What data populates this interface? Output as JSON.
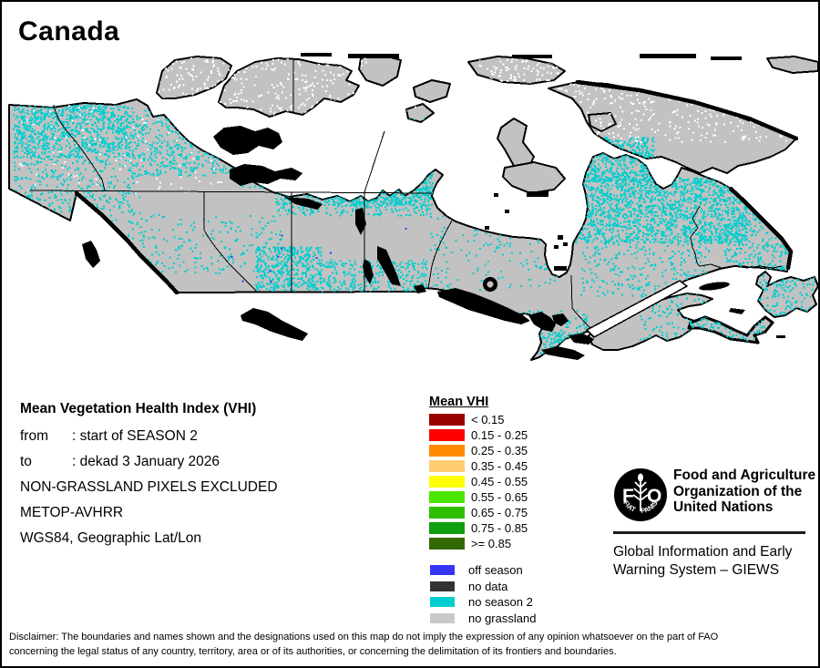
{
  "window": {
    "title": "Canada"
  },
  "map": {
    "description": "Raster map of Canada showing mean VHI classes",
    "land_color": "#C2C2C2",
    "ocean_color": "#FFFFFF",
    "outline_color": "#000000",
    "speckle_colors": {
      "no_season_2": "#00CDCD",
      "off_season": "#3535F3",
      "snow": "#FFFFFF"
    }
  },
  "info_block": {
    "title": "Mean Vegetation Health Index (VHI)",
    "rows": [
      {
        "label": "from",
        "value": ": start of SEASON 2"
      },
      {
        "label": "to",
        "value": ": dekad 3 January 2026"
      },
      {
        "label": "",
        "value": "NON-GRASSLAND PIXELS EXCLUDED"
      },
      {
        "label": "",
        "value": "METOP-AVHRR"
      },
      {
        "label": "",
        "value": "WGS84, Geographic Lat/Lon"
      }
    ]
  },
  "legend": {
    "title": "Mean VHI",
    "classes": [
      {
        "label": "< 0.15",
        "color": "#9B0000"
      },
      {
        "label": "0.15 - 0.25",
        "color": "#FF0000"
      },
      {
        "label": "0.25 - 0.35",
        "color": "#FF8A00"
      },
      {
        "label": "0.35 - 0.45",
        "color": "#FFCE73"
      },
      {
        "label": "0.45 - 0.55",
        "color": "#FFFF00"
      },
      {
        "label": "0.55 - 0.65",
        "color": "#4CE600"
      },
      {
        "label": "0.65 - 0.75",
        "color": "#30BF00"
      },
      {
        "label": "0.75 - 0.85",
        "color": "#0E9E0E"
      },
      {
        "label": ">= 0.85",
        "color": "#336902"
      }
    ],
    "status_classes": [
      {
        "label": "off season",
        "color": "#3535F3"
      },
      {
        "label": "no data",
        "color": "#333333"
      },
      {
        "label": "no season 2",
        "color": "#00CDCD"
      },
      {
        "label": "no grassland",
        "color": "#C9C9C9"
      }
    ]
  },
  "fao": {
    "org_lines": [
      "Food and Agriculture",
      "Organization of the",
      "United Nations"
    ],
    "logo_letter_left": "F",
    "logo_letter_right": "O",
    "logo_motto_left": "FIAT",
    "logo_motto_right": "PANIS",
    "giews_lines": [
      "Global Information and Early",
      "Warning System – GIEWS"
    ]
  },
  "disclaimer": {
    "line1": "Disclaimer: The boundaries and names shown and the designations used on this map do not imply the expression of any opinion whatsoever on the part of FAO",
    "line2": "concerning the legal status of any country, territory, area or of its authorities, or concerning the delimitation of its frontiers and boundaries."
  }
}
